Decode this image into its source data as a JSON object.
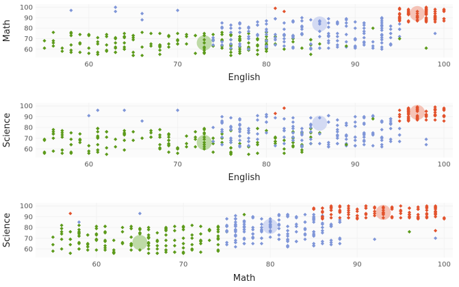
{
  "colors": {
    "green": "#5c9a1a",
    "blue": "#7f96d8",
    "red": "#e2522c",
    "centroid_green": "#a9cf8a",
    "centroid_blue": "#c5cff0",
    "centroid_red": "#f3b0a0"
  },
  "chart_data": [
    {
      "type": "scatter",
      "xlabel": "English",
      "ylabel": "Math",
      "xlim": [
        54,
        101
      ],
      "ylim": [
        52,
        103
      ],
      "x_ticks": [
        "60",
        "70",
        "80",
        "90",
        "100"
      ],
      "y_ticks": [
        "60",
        "70",
        "80",
        "90",
        "100"
      ],
      "grid": true,
      "clusters": [
        {
          "color": "green",
          "x_range": [
            55,
            86
          ],
          "y_range": [
            54,
            76
          ],
          "count": 160,
          "centroid": [
            73,
            66
          ]
        },
        {
          "color": "blue",
          "x_range": [
            74,
            95
          ],
          "y_range": [
            60,
            90
          ],
          "count": 160,
          "centroid": [
            86,
            84
          ]
        },
        {
          "color": "red",
          "x_range": [
            95,
            100
          ],
          "y_range": [
            86,
            100
          ],
          "count": 70,
          "centroid": [
            97,
            94
          ]
        }
      ],
      "extra_points": [
        {
          "x": 58,
          "y": 97,
          "color": "blue"
        },
        {
          "x": 63,
          "y": 100,
          "color": "blue"
        },
        {
          "x": 63,
          "y": 96,
          "color": "blue"
        },
        {
          "x": 66,
          "y": 94,
          "color": "blue"
        },
        {
          "x": 70,
          "y": 97,
          "color": "blue"
        },
        {
          "x": 66,
          "y": 88,
          "color": "blue"
        },
        {
          "x": 81,
          "y": 99,
          "color": "red"
        },
        {
          "x": 82,
          "y": 96,
          "color": "red"
        },
        {
          "x": 99,
          "y": 75,
          "color": "blue"
        },
        {
          "x": 92,
          "y": 80,
          "color": "green"
        },
        {
          "x": 89,
          "y": 63,
          "color": "green"
        },
        {
          "x": 95,
          "y": 70,
          "color": "green"
        },
        {
          "x": 98,
          "y": 61,
          "color": "green"
        },
        {
          "x": 91,
          "y": 67,
          "color": "blue"
        }
      ]
    },
    {
      "type": "scatter",
      "xlabel": "English",
      "ylabel": "Science",
      "xlim": [
        54,
        101
      ],
      "ylim": [
        52,
        103
      ],
      "x_ticks": [
        "60",
        "70",
        "80",
        "90",
        "100"
      ],
      "y_ticks": [
        "60",
        "70",
        "80",
        "90",
        "100"
      ],
      "grid": true,
      "clusters": [
        {
          "color": "green",
          "x_range": [
            55,
            86
          ],
          "y_range": [
            55,
            80
          ],
          "count": 160,
          "centroid": [
            73,
            66
          ]
        },
        {
          "color": "blue",
          "x_range": [
            74,
            95
          ],
          "y_range": [
            62,
            92
          ],
          "count": 160,
          "centroid": [
            86,
            84
          ]
        },
        {
          "color": "red",
          "x_range": [
            95,
            100
          ],
          "y_range": [
            86,
            100
          ],
          "count": 70,
          "centroid": [
            97,
            94
          ]
        }
      ],
      "extra_points": [
        {
          "x": 61,
          "y": 96,
          "color": "blue"
        },
        {
          "x": 64,
          "y": 96,
          "color": "blue"
        },
        {
          "x": 66,
          "y": 86,
          "color": "blue"
        },
        {
          "x": 70,
          "y": 96,
          "color": "blue"
        },
        {
          "x": 60,
          "y": 91,
          "color": "blue"
        },
        {
          "x": 81,
          "y": 93,
          "color": "red"
        },
        {
          "x": 82,
          "y": 98,
          "color": "red"
        },
        {
          "x": 89,
          "y": 64,
          "color": "green"
        },
        {
          "x": 92,
          "y": 88,
          "color": "green"
        },
        {
          "x": 98,
          "y": 69,
          "color": "blue"
        },
        {
          "x": 98,
          "y": 64,
          "color": "blue"
        }
      ]
    },
    {
      "type": "scatter",
      "xlabel": "Math",
      "ylabel": "Science",
      "xlim": [
        53,
        101
      ],
      "ylim": [
        52,
        103
      ],
      "x_ticks": [
        "60",
        "70",
        "80",
        "90",
        "100"
      ],
      "y_ticks": [
        "60",
        "70",
        "80",
        "90",
        "100"
      ],
      "grid": true,
      "clusters": [
        {
          "color": "green",
          "x_range": [
            55,
            75
          ],
          "y_range": [
            56,
            82
          ],
          "count": 150,
          "centroid": [
            65,
            66
          ]
        },
        {
          "color": "blue",
          "x_range": [
            75,
            88
          ],
          "y_range": [
            62,
            92
          ],
          "count": 150,
          "centroid": [
            80,
            81
          ]
        },
        {
          "color": "red",
          "x_range": [
            85,
            100
          ],
          "y_range": [
            88,
            100
          ],
          "count": 110,
          "centroid": [
            93,
            94
          ]
        }
      ],
      "extra_points": [
        {
          "x": 58,
          "y": 85,
          "color": "blue"
        },
        {
          "x": 65,
          "y": 93,
          "color": "blue"
        },
        {
          "x": 57,
          "y": 93,
          "color": "red"
        },
        {
          "x": 92,
          "y": 69,
          "color": "blue"
        },
        {
          "x": 99,
          "y": 70,
          "color": "blue"
        },
        {
          "x": 96,
          "y": 76,
          "color": "green"
        },
        {
          "x": 99,
          "y": 77,
          "color": "red"
        },
        {
          "x": 77,
          "y": 92,
          "color": "green"
        }
      ]
    }
  ]
}
